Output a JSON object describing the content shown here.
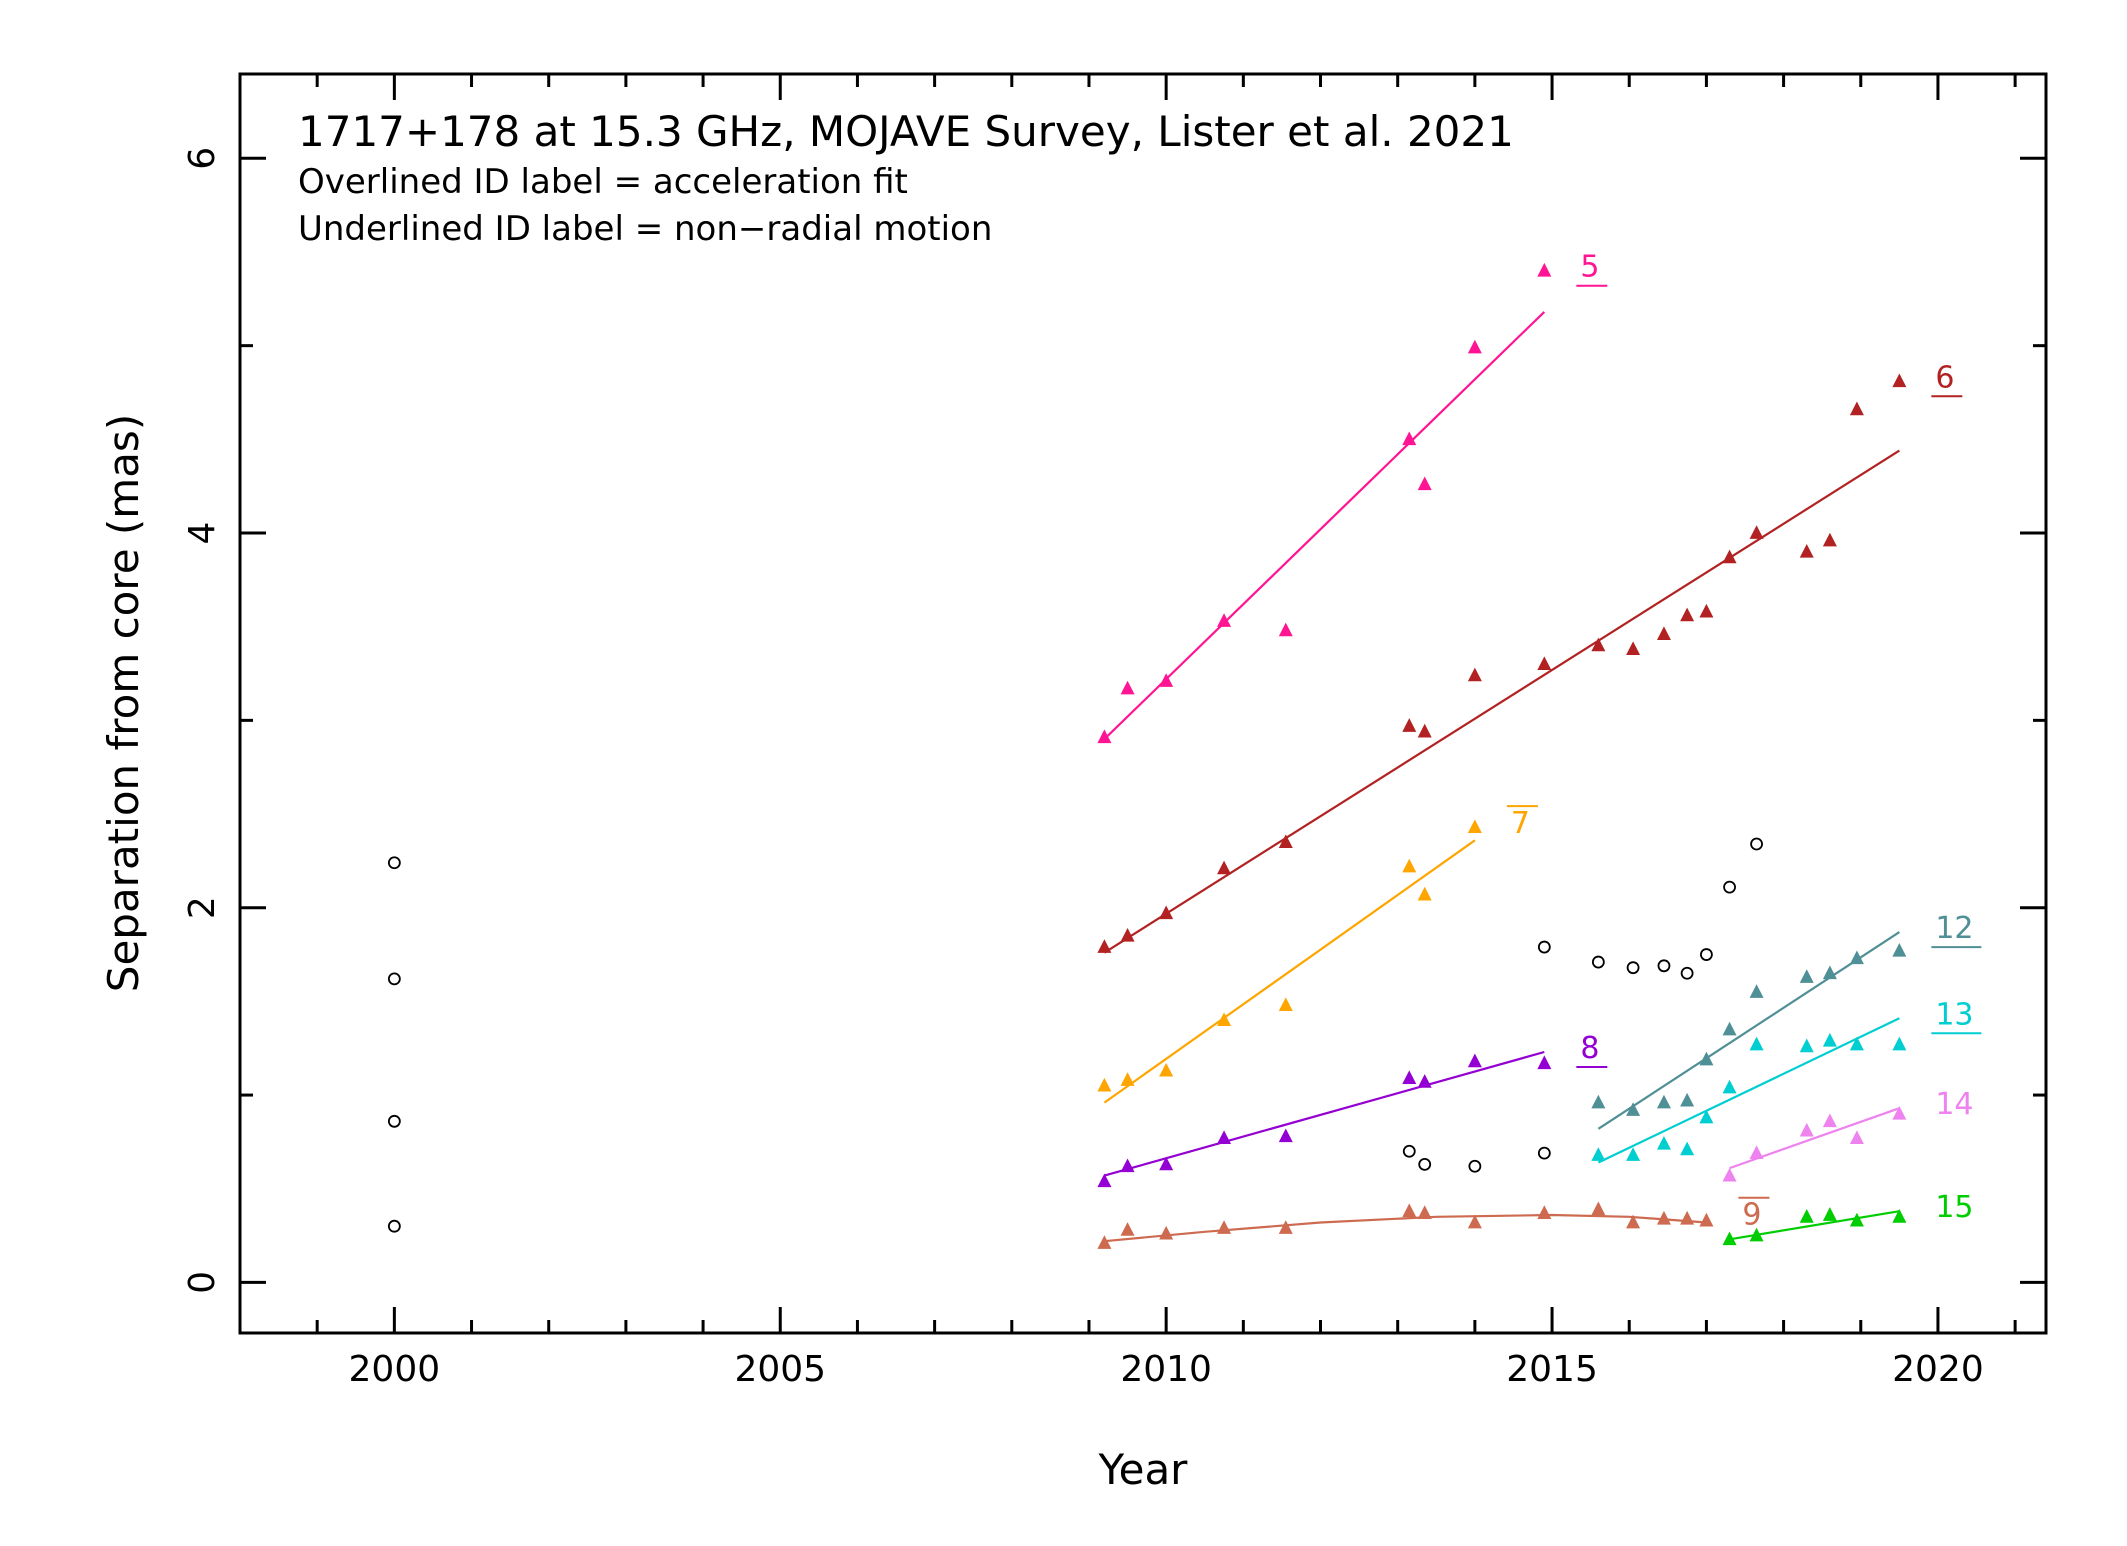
{
  "chart_data": {
    "type": "scatter",
    "title": "1717+178 at 15.3 GHz, MOJAVE Survey, Lister et al. 2021",
    "notes": [
      "Overlined ID label = acceleration fit",
      "Underlined ID label = non−radial motion"
    ],
    "xlabel": "Year",
    "ylabel": "Separation from core (mas)",
    "xlim": [
      1998.0,
      2021.4
    ],
    "ylim": [
      -0.27,
      6.45
    ],
    "x_ticks": [
      2000,
      2005,
      2010,
      2015,
      2020
    ],
    "y_ticks": [
      0,
      2,
      4,
      6
    ],
    "grid": false,
    "series": [
      {
        "name": "5",
        "color": "#ff1493",
        "label_style": "underline",
        "x": [
          2009.2,
          2009.5,
          2010.0,
          2010.75,
          2011.55,
          2013.15,
          2013.35,
          2014.0,
          2014.9
        ],
        "y": [
          2.91,
          3.17,
          3.21,
          3.53,
          3.48,
          4.5,
          4.26,
          4.99,
          5.4
        ],
        "fit": [
          [
            2009.2,
            2.9
          ],
          [
            2014.9,
            5.18
          ]
        ]
      },
      {
        "name": "6",
        "color": "#b22222",
        "label_style": "underline",
        "x": [
          2009.2,
          2009.5,
          2010.0,
          2010.75,
          2011.55,
          2013.15,
          2013.35,
          2014.0,
          2014.9,
          2015.6,
          2016.05,
          2016.45,
          2016.75,
          2017.0,
          2017.3,
          2017.65,
          2018.3,
          2018.6,
          2018.95,
          2019.5
        ],
        "y": [
          1.79,
          1.85,
          1.97,
          2.21,
          2.35,
          2.97,
          2.94,
          3.24,
          3.3,
          3.4,
          3.38,
          3.46,
          3.56,
          3.58,
          3.87,
          4.0,
          3.9,
          3.96,
          4.66,
          4.81
        ],
        "fit": [
          [
            2009.2,
            1.76
          ],
          [
            2019.5,
            4.44
          ]
        ]
      },
      {
        "name": "7",
        "color": "#ffa500",
        "label_style": "overline",
        "x": [
          2009.2,
          2009.5,
          2010.0,
          2010.75,
          2011.55,
          2013.15,
          2013.35,
          2014.0
        ],
        "y": [
          1.05,
          1.08,
          1.13,
          1.4,
          1.48,
          2.22,
          2.07,
          2.43
        ],
        "fit": [
          [
            2009.2,
            0.96
          ],
          [
            2014.0,
            2.36
          ]
        ]
      },
      {
        "name": "8",
        "color": "#9400d3",
        "label_style": "underline",
        "x": [
          2009.2,
          2009.5,
          2010.0,
          2010.75,
          2011.55,
          2013.15,
          2013.35,
          2014.0,
          2014.9
        ],
        "y": [
          0.54,
          0.62,
          0.63,
          0.77,
          0.78,
          1.09,
          1.07,
          1.18,
          1.17
        ],
        "fit": [
          [
            2009.2,
            0.57
          ],
          [
            2014.9,
            1.23
          ]
        ]
      },
      {
        "name": "9",
        "color": "#cd6a4f",
        "label_style": "overline",
        "x": [
          2009.2,
          2009.5,
          2010.0,
          2010.75,
          2011.55,
          2013.15,
          2013.35,
          2014.0,
          2014.9,
          2015.6,
          2016.05,
          2016.45,
          2016.75,
          2017.0
        ],
        "y": [
          0.21,
          0.28,
          0.26,
          0.29,
          0.29,
          0.38,
          0.37,
          0.32,
          0.37,
          0.39,
          0.32,
          0.34,
          0.34,
          0.33
        ],
        "fit": [
          [
            2009.2,
            0.22
          ],
          [
            2010.5,
            0.27
          ],
          [
            2012.0,
            0.32
          ],
          [
            2013.5,
            0.35
          ],
          [
            2015.0,
            0.36
          ],
          [
            2016.0,
            0.35
          ],
          [
            2017.0,
            0.32
          ]
        ]
      },
      {
        "name": "12",
        "color": "#4f8f96",
        "label_style": "underline",
        "x": [
          2015.6,
          2016.05,
          2016.45,
          2016.75,
          2017.0,
          2017.3,
          2017.65,
          2018.3,
          2018.6,
          2018.95,
          2019.5
        ],
        "y": [
          0.96,
          0.92,
          0.96,
          0.97,
          1.19,
          1.35,
          1.55,
          1.63,
          1.65,
          1.73,
          1.77
        ],
        "fit": [
          [
            2015.6,
            0.82
          ],
          [
            2019.5,
            1.87
          ]
        ]
      },
      {
        "name": "13",
        "color": "#00ced1",
        "label_style": "underline",
        "x": [
          2015.6,
          2016.05,
          2016.45,
          2016.75,
          2017.0,
          2017.3,
          2017.65,
          2018.3,
          2018.6,
          2018.95,
          2019.5
        ],
        "y": [
          0.68,
          0.68,
          0.74,
          0.71,
          0.88,
          1.04,
          1.27,
          1.26,
          1.29,
          1.27,
          1.27
        ],
        "fit": [
          [
            2015.6,
            0.64
          ],
          [
            2019.5,
            1.41
          ]
        ]
      },
      {
        "name": "14",
        "color": "#ee82ee",
        "label_style": "plain",
        "x": [
          2017.3,
          2017.65,
          2018.3,
          2018.6,
          2018.95,
          2019.5
        ],
        "y": [
          0.57,
          0.69,
          0.81,
          0.86,
          0.77,
          0.9
        ],
        "fit": [
          [
            2017.3,
            0.61
          ],
          [
            2019.5,
            0.93
          ]
        ]
      },
      {
        "name": "15",
        "color": "#00cd00",
        "label_style": "plain",
        "x": [
          2017.3,
          2017.65,
          2018.3,
          2018.6,
          2018.95,
          2019.5
        ],
        "y": [
          0.23,
          0.25,
          0.35,
          0.36,
          0.33,
          0.35
        ],
        "fit": [
          [
            2017.3,
            0.23
          ],
          [
            2019.5,
            0.38
          ]
        ]
      },
      {
        "name": "",
        "color": "#000000",
        "marker": "open-circle",
        "x": [
          2000.0,
          2000.0,
          2000.0,
          2000.0,
          2013.15,
          2013.35,
          2014.0,
          2014.9,
          2014.9,
          2015.6,
          2016.05,
          2016.45,
          2016.75,
          2017.0,
          2017.3,
          2017.65
        ],
        "y": [
          2.24,
          1.62,
          0.86,
          0.3,
          0.7,
          0.63,
          0.62,
          0.69,
          1.79,
          1.71,
          1.68,
          1.69,
          1.65,
          1.75,
          2.11,
          2.34
        ]
      }
    ]
  }
}
